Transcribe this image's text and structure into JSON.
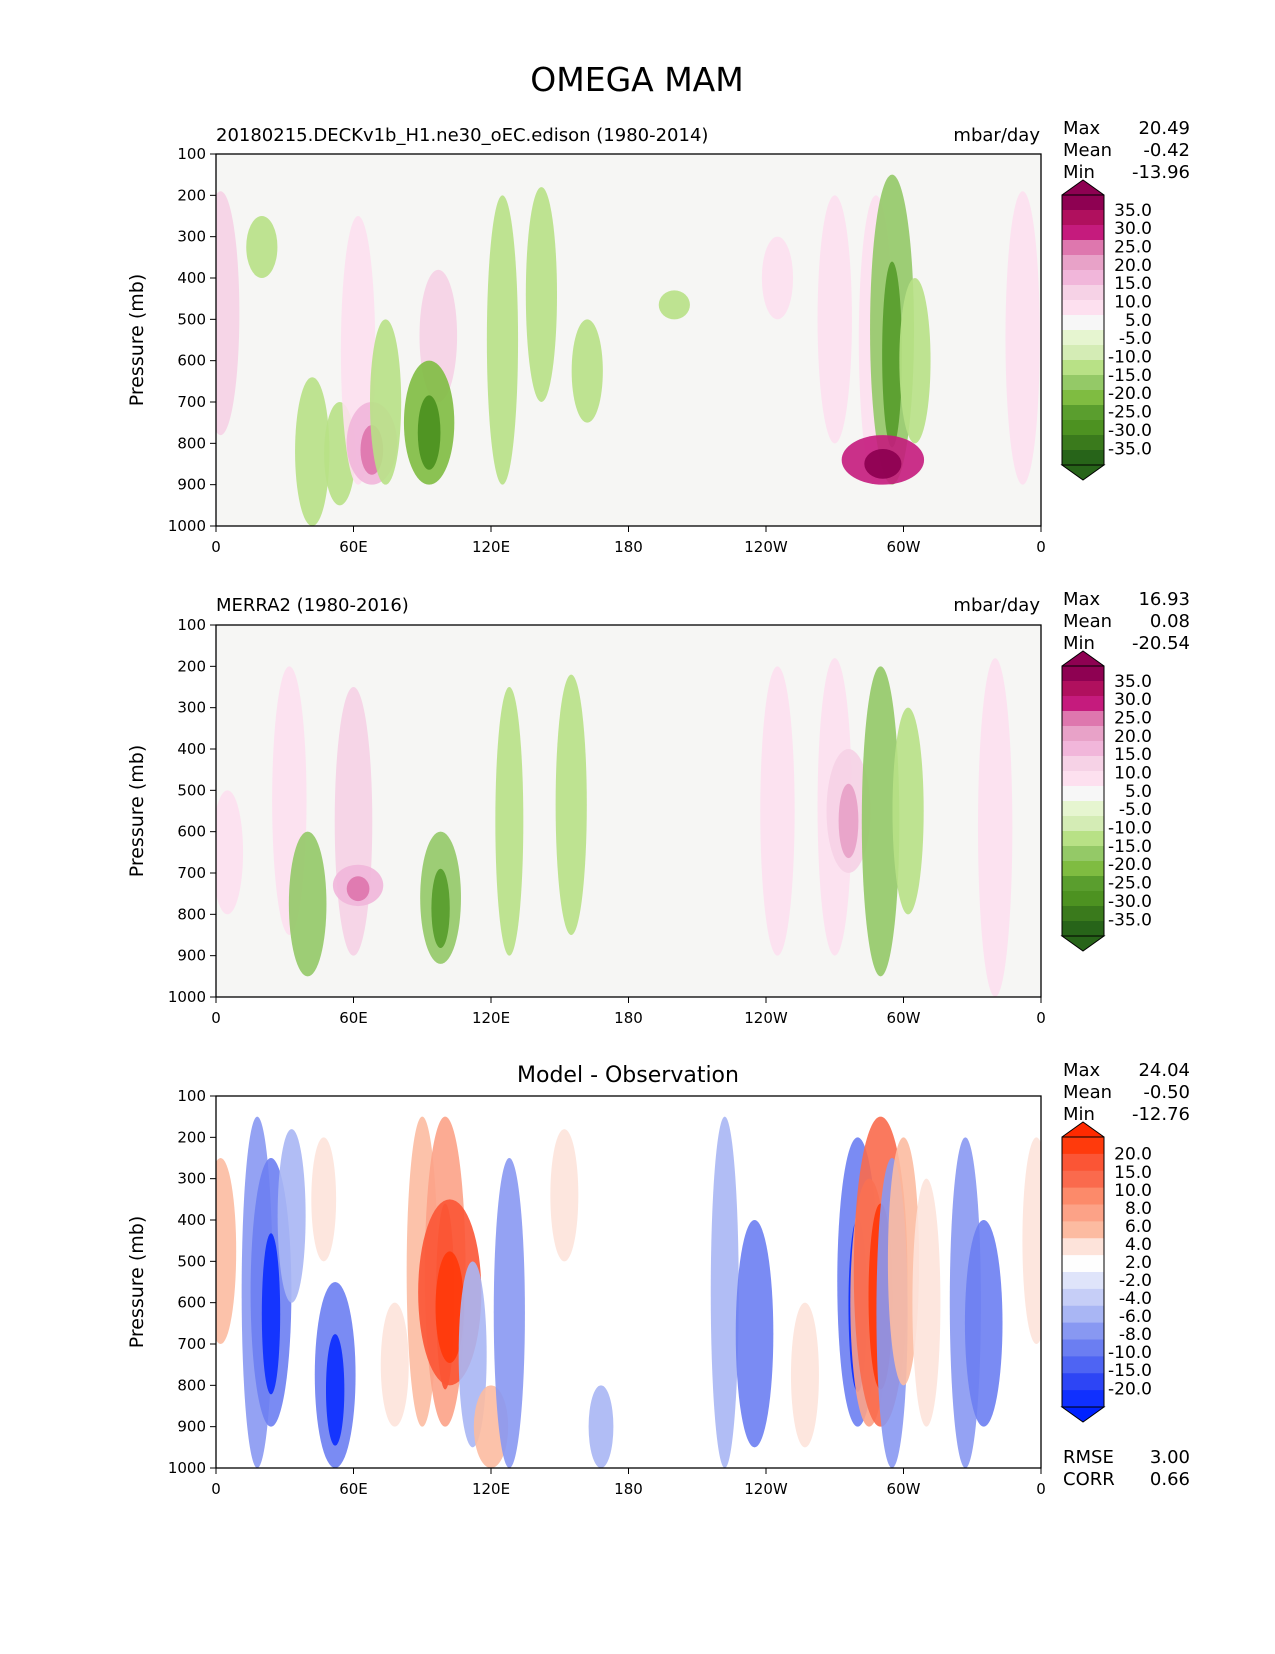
{
  "figure": {
    "title": "OMEGA MAM"
  },
  "chart_data": [
    {
      "type": "heatmap",
      "title_left": "20180215.DECKv1b_H1.ne30_oEC.edison (1980-2014)",
      "units": "mbar/day",
      "ylabel": "Pressure (mb)",
      "yticks": [
        "100",
        "200",
        "300",
        "400",
        "500",
        "600",
        "700",
        "800",
        "900",
        "1000"
      ],
      "xticks": [
        "0",
        "60E",
        "120E",
        "180",
        "120W",
        "60W",
        "0"
      ],
      "stats": [
        {
          "label": "Max",
          "value": "20.49"
        },
        {
          "label": "Mean",
          "value": "-0.42"
        },
        {
          "label": "Min",
          "value": "-13.96"
        }
      ],
      "colorbar": {
        "labels": [
          "35.0",
          "30.0",
          "25.0",
          "20.0",
          "15.0",
          "10.0",
          "5.0",
          "-5.0",
          "-10.0",
          "-15.0",
          "-20.0",
          "-25.0",
          "-30.0",
          "-35.0"
        ],
        "colors": [
          "#8e0152",
          "#b0105e",
          "#c51b7d",
          "#de77ae",
          "#e8a2c8",
          "#f1b6da",
          "#f6d2e6",
          "#fde0ef",
          "#f7f7f7",
          "#e6f5d0",
          "#d4ecb5",
          "#b8e186",
          "#94c967",
          "#7fbc41",
          "#5a9e2e",
          "#4d9221",
          "#3a7a1c",
          "#276419"
        ],
        "top_cap": "#8e0152",
        "bottom_cap": "#276419"
      },
      "background": "#f6f6f4",
      "features": [
        {
          "lon": 2,
          "p_top": 190,
          "p_bot": 780,
          "val": 8
        },
        {
          "lon": 20,
          "p_top": 250,
          "p_bot": 400,
          "val": -6
        },
        {
          "lon": 42,
          "p_top": 640,
          "p_bot": 1000,
          "val": -7
        },
        {
          "lon": 54,
          "p_top": 700,
          "p_bot": 950,
          "val": -6
        },
        {
          "lon": 62,
          "p_top": 250,
          "p_bot": 900,
          "val": 7
        },
        {
          "lon": 68,
          "p_top": 700,
          "p_bot": 900,
          "val": 12
        },
        {
          "lon": 74,
          "p_top": 500,
          "p_bot": 900,
          "val": -6
        },
        {
          "lon": 97,
          "p_top": 380,
          "p_bot": 700,
          "val": 8
        },
        {
          "lon": 93,
          "p_top": 600,
          "p_bot": 900,
          "val": -12
        },
        {
          "lon": 125,
          "p_top": 200,
          "p_bot": 900,
          "val": -6
        },
        {
          "lon": 142,
          "p_top": 180,
          "p_bot": 700,
          "val": -6
        },
        {
          "lon": 162,
          "p_top": 500,
          "p_bot": 750,
          "val": -6
        },
        {
          "lon": 200,
          "p_top": 430,
          "p_bot": 500,
          "val": -6
        },
        {
          "lon": 245,
          "p_top": 300,
          "p_bot": 500,
          "val": 6
        },
        {
          "lon": 270,
          "p_top": 200,
          "p_bot": 800,
          "val": 7
        },
        {
          "lon": 288,
          "p_top": 200,
          "p_bot": 900,
          "val": 7
        },
        {
          "lon": 295,
          "p_top": 150,
          "p_bot": 900,
          "val": -10
        },
        {
          "lon": 291,
          "p_top": 780,
          "p_bot": 900,
          "val": 22
        },
        {
          "lon": 305,
          "p_top": 400,
          "p_bot": 800,
          "val": -6
        },
        {
          "lon": 352,
          "p_top": 190,
          "p_bot": 900,
          "val": 7
        }
      ]
    },
    {
      "type": "heatmap",
      "title_left": "MERRA2 (1980-2016)",
      "units": "mbar/day",
      "ylabel": "Pressure (mb)",
      "yticks": [
        "100",
        "200",
        "300",
        "400",
        "500",
        "600",
        "700",
        "800",
        "900",
        "1000"
      ],
      "xticks": [
        "0",
        "60E",
        "120E",
        "180",
        "120W",
        "60W",
        "0"
      ],
      "stats": [
        {
          "label": "Max",
          "value": "16.93"
        },
        {
          "label": "Mean",
          "value": "0.08"
        },
        {
          "label": "Min",
          "value": "-20.54"
        }
      ],
      "colorbar": {
        "labels": [
          "35.0",
          "30.0",
          "25.0",
          "20.0",
          "15.0",
          "10.0",
          "5.0",
          "-5.0",
          "-10.0",
          "-15.0",
          "-20.0",
          "-25.0",
          "-30.0",
          "-35.0"
        ],
        "colors": [
          "#8e0152",
          "#b0105e",
          "#c51b7d",
          "#de77ae",
          "#e8a2c8",
          "#f1b6da",
          "#f6d2e6",
          "#fde0ef",
          "#f7f7f7",
          "#e6f5d0",
          "#d4ecb5",
          "#b8e186",
          "#94c967",
          "#7fbc41",
          "#5a9e2e",
          "#4d9221",
          "#3a7a1c",
          "#276419"
        ],
        "top_cap": "#8e0152",
        "bottom_cap": "#276419"
      },
      "background": "#f6f6f4",
      "features": [
        {
          "lon": 5,
          "p_top": 500,
          "p_bot": 800,
          "val": 6
        },
        {
          "lon": 32,
          "p_top": 200,
          "p_bot": 850,
          "val": 7
        },
        {
          "lon": 40,
          "p_top": 600,
          "p_bot": 950,
          "val": -8
        },
        {
          "lon": 60,
          "p_top": 250,
          "p_bot": 900,
          "val": 8
        },
        {
          "lon": 62,
          "p_top": 680,
          "p_bot": 780,
          "val": 12
        },
        {
          "lon": 98,
          "p_top": 600,
          "p_bot": 920,
          "val": -9
        },
        {
          "lon": 128,
          "p_top": 250,
          "p_bot": 900,
          "val": -5
        },
        {
          "lon": 155,
          "p_top": 220,
          "p_bot": 850,
          "val": -6
        },
        {
          "lon": 245,
          "p_top": 200,
          "p_bot": 900,
          "val": 7
        },
        {
          "lon": 270,
          "p_top": 180,
          "p_bot": 900,
          "val": 7
        },
        {
          "lon": 276,
          "p_top": 400,
          "p_bot": 700,
          "val": 10
        },
        {
          "lon": 290,
          "p_top": 200,
          "p_bot": 950,
          "val": -8
        },
        {
          "lon": 302,
          "p_top": 300,
          "p_bot": 800,
          "val": -6
        },
        {
          "lon": 340,
          "p_top": 180,
          "p_bot": 1000,
          "val": 7
        }
      ]
    },
    {
      "type": "heatmap",
      "title_center": "Model - Observation",
      "units": "",
      "ylabel": "Pressure (mb)",
      "yticks": [
        "100",
        "200",
        "300",
        "400",
        "500",
        "600",
        "700",
        "800",
        "900",
        "1000"
      ],
      "xticks": [
        "0",
        "60E",
        "120E",
        "180",
        "120W",
        "60W",
        "0"
      ],
      "stats": [
        {
          "label": "Max",
          "value": "24.04"
        },
        {
          "label": "Mean",
          "value": "-0.50"
        },
        {
          "label": "Min",
          "value": "-12.76"
        }
      ],
      "extra_stats": [
        {
          "label": "RMSE",
          "value": "3.00"
        },
        {
          "label": "CORR",
          "value": "0.66"
        }
      ],
      "colorbar": {
        "labels": [
          "20.0",
          "15.0",
          "10.0",
          "8.0",
          "6.0",
          "4.0",
          "2.0",
          "-2.0",
          "-4.0",
          "-6.0",
          "-8.0",
          "-10.0",
          "-15.0",
          "-20.0"
        ],
        "colors": [
          "#ff3a0c",
          "#fb5535",
          "#fa6a4d",
          "#fc8a6a",
          "#fca287",
          "#fcbba1",
          "#fde3da",
          "#fefefe",
          "#dfe4fa",
          "#c6cef7",
          "#a9b6f4",
          "#8898f2",
          "#6b7ef2",
          "#4e64f3",
          "#2d45f5",
          "#1030fe"
        ],
        "top_cap": "#ff2a00",
        "bottom_cap": "#0022ff"
      },
      "background": "#ffffff",
      "features": [
        {
          "lon": 2,
          "p_top": 250,
          "p_bot": 700,
          "val": 6
        },
        {
          "lon": 18,
          "p_top": 150,
          "p_bot": 1000,
          "val": -6
        },
        {
          "lon": 24,
          "p_top": 250,
          "p_bot": 900,
          "val": -9
        },
        {
          "lon": 33,
          "p_top": 180,
          "p_bot": 600,
          "val": -5
        },
        {
          "lon": 47,
          "p_top": 200,
          "p_bot": 500,
          "val": 4
        },
        {
          "lon": 52,
          "p_top": 550,
          "p_bot": 1000,
          "val": -9
        },
        {
          "lon": 78,
          "p_top": 600,
          "p_bot": 900,
          "val": 5
        },
        {
          "lon": 90,
          "p_top": 150,
          "p_bot": 900,
          "val": 6
        },
        {
          "lon": 100,
          "p_top": 150,
          "p_bot": 900,
          "val": 9
        },
        {
          "lon": 102,
          "p_top": 350,
          "p_bot": 800,
          "val": 16
        },
        {
          "lon": 112,
          "p_top": 500,
          "p_bot": 950,
          "val": -5
        },
        {
          "lon": 120,
          "p_top": 800,
          "p_bot": 1000,
          "val": 7
        },
        {
          "lon": 128,
          "p_top": 250,
          "p_bot": 1000,
          "val": -6
        },
        {
          "lon": 152,
          "p_top": 180,
          "p_bot": 500,
          "val": 5
        },
        {
          "lon": 168,
          "p_top": 800,
          "p_bot": 1000,
          "val": -4
        },
        {
          "lon": 222,
          "p_top": 150,
          "p_bot": 1000,
          "val": -5
        },
        {
          "lon": 235,
          "p_top": 400,
          "p_bot": 950,
          "val": -8
        },
        {
          "lon": 257,
          "p_top": 600,
          "p_bot": 950,
          "val": 5
        },
        {
          "lon": 280,
          "p_top": 200,
          "p_bot": 900,
          "val": -9
        },
        {
          "lon": 285,
          "p_top": 300,
          "p_bot": 900,
          "val": 8
        },
        {
          "lon": 290,
          "p_top": 150,
          "p_bot": 900,
          "val": 13
        },
        {
          "lon": 295,
          "p_top": 250,
          "p_bot": 1000,
          "val": -6
        },
        {
          "lon": 300,
          "p_top": 200,
          "p_bot": 800,
          "val": 6
        },
        {
          "lon": 310,
          "p_top": 300,
          "p_bot": 900,
          "val": 5
        },
        {
          "lon": 327,
          "p_top": 200,
          "p_bot": 1000,
          "val": -6
        },
        {
          "lon": 335,
          "p_top": 400,
          "p_bot": 900,
          "val": -8
        },
        {
          "lon": 358,
          "p_top": 200,
          "p_bot": 700,
          "val": 5
        }
      ]
    }
  ]
}
